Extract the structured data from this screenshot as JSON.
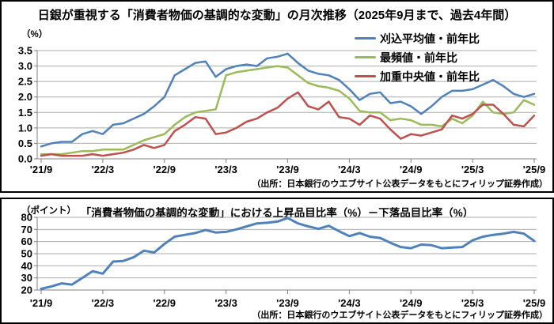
{
  "accent_colors": {
    "trimmed_mean_blue": "#4F81BD",
    "mode_green": "#9BBB59",
    "weighted_median_red": "#C0504D",
    "gridline_gray": "#ABABAB",
    "axis_gray": "#7F7F7F",
    "panel_border_black": "#000000"
  },
  "months": [
    "'21/9",
    "'21/10",
    "'21/11",
    "'21/12",
    "'22/1",
    "'22/2",
    "'22/3",
    "'22/4",
    "'22/5",
    "'22/6",
    "'22/7",
    "'22/8",
    "'22/9",
    "'22/10",
    "'22/11",
    "'22/12",
    "'23/1",
    "'23/2",
    "'23/3",
    "'23/4",
    "'23/5",
    "'23/6",
    "'23/7",
    "'23/8",
    "'23/9",
    "'23/10",
    "'23/11",
    "'23/12",
    "'24/1",
    "'24/2",
    "'24/3",
    "'24/4",
    "'24/5",
    "'24/6",
    "'24/7",
    "'24/8",
    "'24/9",
    "'24/10",
    "'24/11",
    "'24/12",
    "'25/1",
    "'25/2",
    "'25/3",
    "'25/4",
    "'25/5",
    "'25/6",
    "'25/7",
    "'25/8",
    "'25/9"
  ],
  "chart_data": [
    {
      "type": "line",
      "title": "日銀が重視する「消費者物価の基調的な変動」の月次推移（2025年9月まで、過去4年間）",
      "y_unit_label": "（%）",
      "source": "（出所：日本銀行のウエブサイト公表データをもとにフィリップ証券作成）",
      "ylim": [
        0.0,
        3.5
      ],
      "y_ticks": [
        "3.5",
        "3.0",
        "2.5",
        "2.0",
        "1.5",
        "1.0",
        "0.5",
        "0.0"
      ],
      "x_tick_indices": [
        0,
        6,
        12,
        18,
        24,
        30,
        36,
        42,
        48
      ],
      "x_tick_labels": [
        "'21/9",
        "'22/3",
        "'22/9",
        "'23/3",
        "'23/9",
        "'24/3",
        "'24/9",
        "'25/3",
        "'25/9"
      ],
      "grid": true,
      "legend_position": "top-right",
      "series": [
        {
          "name": "刈込平均値・前年比",
          "color": "#4F81BD",
          "values": [
            0.4,
            0.5,
            0.55,
            0.55,
            0.8,
            0.9,
            0.8,
            1.1,
            1.15,
            1.3,
            1.45,
            1.7,
            2.0,
            2.7,
            2.9,
            3.1,
            3.15,
            2.65,
            2.9,
            3.0,
            3.05,
            3.0,
            3.25,
            3.3,
            3.4,
            3.1,
            2.85,
            2.75,
            2.7,
            2.55,
            2.25,
            1.9,
            2.1,
            2.15,
            1.8,
            1.85,
            1.7,
            1.45,
            1.7,
            2.0,
            2.2,
            2.2,
            2.25,
            2.4,
            2.55,
            2.35,
            2.1,
            2.0,
            2.1
          ]
        },
        {
          "name": "最頻値・前年比",
          "color": "#9BBB59",
          "values": [
            0.15,
            0.15,
            0.15,
            0.2,
            0.25,
            0.25,
            0.3,
            0.3,
            0.3,
            0.45,
            0.6,
            0.7,
            0.8,
            1.1,
            1.35,
            1.5,
            1.55,
            1.6,
            2.7,
            2.8,
            2.85,
            2.9,
            2.95,
            3.0,
            2.95,
            2.7,
            2.45,
            2.35,
            2.3,
            2.2,
            1.95,
            1.55,
            1.5,
            1.5,
            1.25,
            1.3,
            1.25,
            1.1,
            1.1,
            1.05,
            1.3,
            1.15,
            1.4,
            1.85,
            1.5,
            1.45,
            1.5,
            1.9,
            1.75
          ]
        },
        {
          "name": "加重中央値・前年比",
          "color": "#C0504D",
          "values": [
            0.1,
            0.15,
            0.1,
            0.1,
            0.1,
            0.15,
            0.1,
            0.15,
            0.2,
            0.3,
            0.45,
            0.35,
            0.45,
            0.9,
            1.1,
            1.35,
            1.3,
            0.8,
            0.85,
            1.0,
            1.2,
            1.3,
            1.5,
            1.65,
            1.95,
            2.15,
            1.7,
            1.6,
            1.85,
            1.35,
            1.3,
            1.1,
            1.4,
            1.3,
            0.95,
            0.65,
            0.8,
            0.75,
            0.85,
            0.95,
            1.4,
            1.3,
            1.45,
            1.75,
            1.75,
            1.45,
            1.1,
            1.05,
            1.4
          ]
        }
      ]
    },
    {
      "type": "line",
      "title": "「消費者物価の基調的な変動」における上昇品目比率（%）－下落品目比率（%）",
      "y_unit_label": "（ポイント）",
      "source": "（出所：日本銀行のウエブサイト公表データをもとにフィリップ証券作成）",
      "ylim": [
        20,
        80
      ],
      "y_ticks": [
        "80",
        "70",
        "60",
        "50",
        "40",
        "30",
        "20"
      ],
      "x_tick_indices": [
        0,
        6,
        12,
        18,
        24,
        30,
        36,
        42,
        48
      ],
      "x_tick_labels": [
        "'21/9",
        "'22/3",
        "'22/9",
        "'23/3",
        "'23/9",
        "'24/3",
        "'24/9",
        "'25/3",
        "'25/9"
      ],
      "grid": true,
      "legend_position": "none",
      "series": [
        {
          "name": "上昇品目比率－下落品目比率",
          "color": "#4F81BD",
          "values": [
            21,
            23,
            25.5,
            24.5,
            30,
            35.5,
            33.5,
            43.5,
            44,
            47,
            52.5,
            51,
            58,
            64,
            65.5,
            67,
            69.5,
            67.5,
            68,
            70,
            72.5,
            75,
            75.5,
            76.5,
            79.5,
            75,
            72.5,
            70.5,
            73,
            68.5,
            64.5,
            67,
            64,
            63,
            59,
            55.5,
            54.5,
            57.5,
            57,
            54.5,
            55,
            55.5,
            61,
            64,
            65.5,
            66.5,
            68,
            66.5,
            60.5
          ]
        }
      ]
    }
  ]
}
